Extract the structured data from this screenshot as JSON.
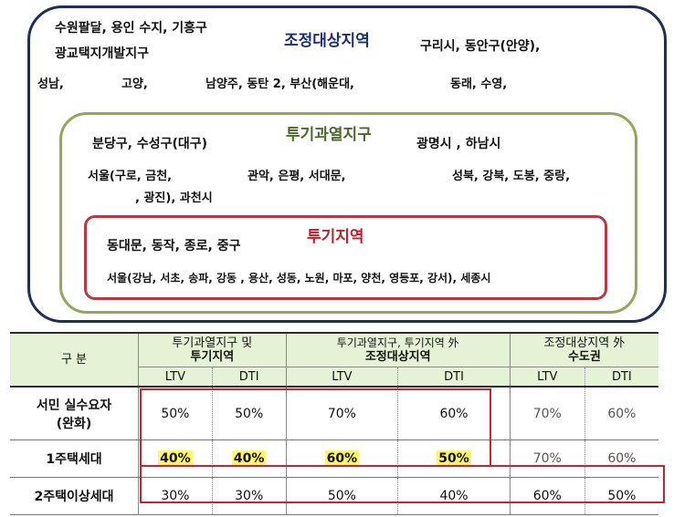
{
  "zones": {
    "adjust": {
      "title": "조정대상지역",
      "line1": "수원팔달, 용인 수지, 기흥구",
      "line2": "광교택지개발지구",
      "line3": "구리시, 동안구(안양),",
      "line4a": "성남,",
      "line4b": "고양,",
      "line4c": "남양주, 동탄 2, 부산(해운대,",
      "line4d": "동래, 수영,"
    },
    "overheat": {
      "title": "투기과열지구",
      "line1": "분당구, 수성구(대구)",
      "line2": "광명시 , 하남시",
      "line3a": "서울(구로, 금천,",
      "line3b": "관악, 은평, 서대문,",
      "line3c": "성북, 강북, 도봉, 중랑,",
      "line4": ", 광진), 과천시"
    },
    "speculation": {
      "title": "투기지역",
      "line1": "동대문, 동작, 종로, 중구",
      "line2": "서울(강남, 서초, 송파, 강동 , 용산, 성동, 노원, 마포, 양천, 영등포, 강서), 세종시"
    }
  },
  "table": {
    "corner": "구  분",
    "groups": [
      {
        "line1": "투기과열지구 및",
        "line2": "투기지역"
      },
      {
        "line1": "투기과열지구, 투기지역 外",
        "line2": "조정대상지역"
      },
      {
        "line1": "조정대상지역   外",
        "line2": "수도권"
      }
    ],
    "subheaders": [
      "LTV",
      "DTI",
      "LTV",
      "DTI",
      "LTV",
      "DTI"
    ],
    "rows": [
      {
        "label1": "서민 실수요자",
        "label2": "(완화)",
        "values": [
          "50%",
          "50%",
          "70%",
          "60%",
          "70%",
          "60%"
        ]
      },
      {
        "label1": "1주택세대",
        "values": [
          "40%",
          "40%",
          "60%",
          "50%",
          "70%",
          "60%"
        ]
      },
      {
        "label1": "2주택이상세대",
        "values": [
          "30%",
          "30%",
          "50%",
          "40%",
          "60%",
          "50%"
        ]
      }
    ]
  },
  "colors": {
    "outer_border": "#1f2f5a",
    "middle_border": "#8fa85a",
    "inner_border": "#b83a40",
    "highlight": "#fff56a",
    "header_bg": "#e5f2d5"
  }
}
